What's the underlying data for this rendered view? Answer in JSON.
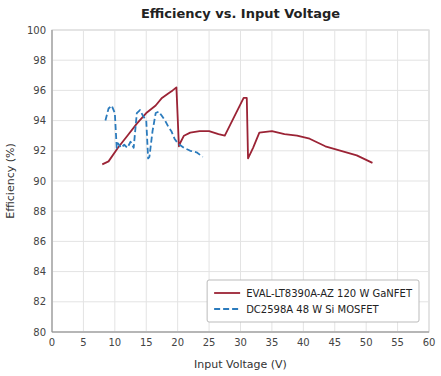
{
  "chart_data": {
    "type": "line",
    "title": "Efficiency vs. Input Voltage",
    "x_label": "Input Voltage (V)",
    "y_label": "Efficiency (%)",
    "xlim": [
      0,
      60
    ],
    "ylim": [
      80,
      100
    ],
    "xticks": [
      0,
      5,
      10,
      15,
      20,
      25,
      30,
      35,
      40,
      45,
      50,
      55,
      60
    ],
    "yticks": [
      80,
      82,
      84,
      86,
      88,
      90,
      92,
      94,
      96,
      98,
      100
    ],
    "grid": true,
    "legend": "lower right",
    "series": [
      {
        "name": "EVAL-LT8390A-AZ 120 W GaNFET",
        "color": "#9B2335",
        "line_style": "solid",
        "x": [
          8.0,
          9.0,
          10.5,
          12.0,
          13.5,
          15.0,
          16.5,
          17.5,
          18.5,
          19.2,
          19.8,
          20.2,
          20.5,
          21.0,
          22.0,
          23.5,
          25.0,
          26.5,
          27.5,
          30.5,
          31.0,
          31.2,
          32.0,
          33.0,
          35.0,
          37.0,
          39.0,
          41.0,
          43.5,
          46.0,
          48.5,
          51.0
        ],
        "values": [
          91.1,
          91.3,
          92.2,
          93.0,
          93.8,
          94.5,
          95.0,
          95.5,
          95.8,
          96.0,
          96.2,
          92.3,
          92.6,
          93.0,
          93.2,
          93.3,
          93.3,
          93.1,
          93.0,
          95.5,
          95.5,
          91.5,
          92.2,
          93.2,
          93.3,
          93.1,
          93.0,
          92.8,
          92.3,
          92.0,
          91.7,
          91.2
        ]
      },
      {
        "name": "DC2598A 48 W Si MOSFET",
        "color": "#2B7BBD",
        "line_style": "dashed",
        "x": [
          8.5,
          9.0,
          9.5,
          10.0,
          10.3,
          10.5,
          11.0,
          11.5,
          12.0,
          12.5,
          13.0,
          13.5,
          14.0,
          14.5,
          15.0,
          15.3,
          15.5,
          16.0,
          16.5,
          17.0,
          17.5,
          18.0,
          18.5,
          19.0,
          19.5,
          20.0,
          21.0,
          22.0,
          23.0,
          24.0
        ],
        "values": [
          94.0,
          94.8,
          95.0,
          94.5,
          92.2,
          92.5,
          92.2,
          92.4,
          92.2,
          92.6,
          92.2,
          94.5,
          94.7,
          94.3,
          94.0,
          91.5,
          91.6,
          93.3,
          94.5,
          94.6,
          94.3,
          94.0,
          93.6,
          93.3,
          92.8,
          92.5,
          92.2,
          92.0,
          91.9,
          91.6
        ]
      }
    ]
  }
}
